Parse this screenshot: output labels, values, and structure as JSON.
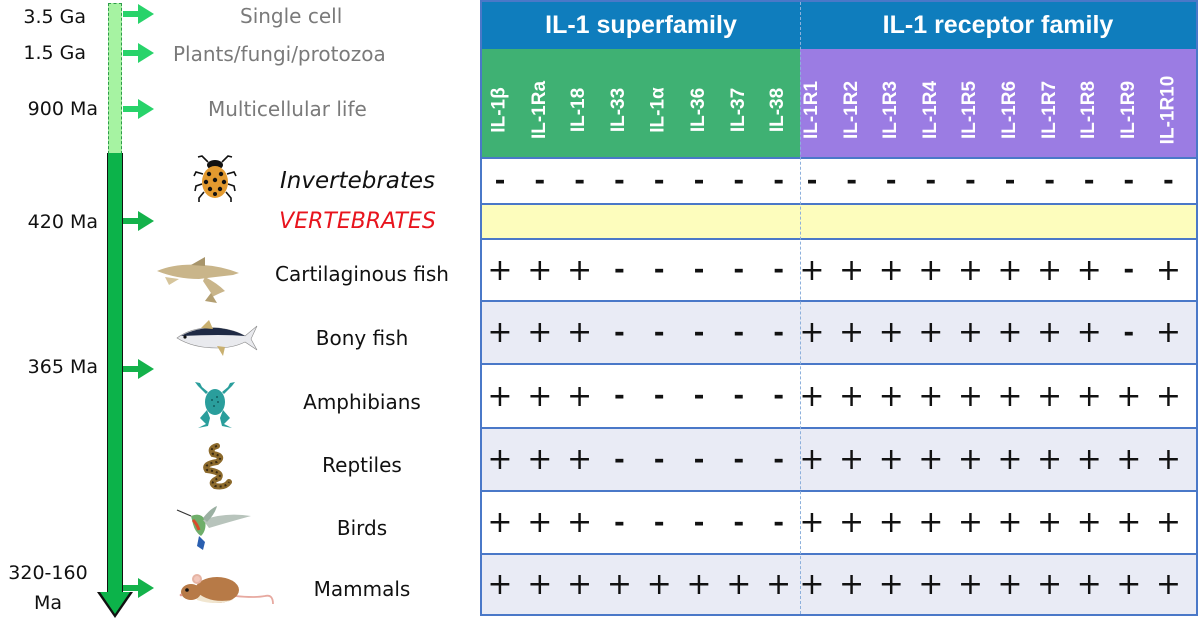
{
  "timeline": {
    "eras": [
      {
        "label": "3.5 Ga",
        "event": "Single cell"
      },
      {
        "label": "1.5 Ga",
        "event": "Plants/fungi/protozoa"
      },
      {
        "label": "900 Ma",
        "event": "Multicellular life"
      },
      {
        "label": "420 Ma"
      },
      {
        "label": "365 Ma"
      },
      {
        "label_line1": "320-160",
        "label_line2": "Ma"
      }
    ],
    "colors": {
      "early_bar": "#a6f3a2",
      "main_bar": "#0cb34a",
      "arrow": "#28d36a"
    }
  },
  "taxa": [
    {
      "name": "Invertebrates",
      "icon": "ladybug-icon"
    },
    {
      "name": "VERTEBRATES"
    },
    {
      "name": "Cartilaginous fish",
      "icon": "shark-icon"
    },
    {
      "name": "Bony fish",
      "icon": "tuna-icon"
    },
    {
      "name": "Amphibians",
      "icon": "frog-icon"
    },
    {
      "name": "Reptiles",
      "icon": "snake-icon"
    },
    {
      "name": "Birds",
      "icon": "hummingbird-icon"
    },
    {
      "name": "Mammals",
      "icon": "mouse-icon"
    }
  ],
  "table": {
    "families": [
      {
        "title": "IL-1 superfamily",
        "color": "#3fb173"
      },
      {
        "title": "IL-1 receptor family",
        "color": "#9b7ce3"
      }
    ],
    "header_color": "#0f7dbd",
    "columns": [
      "IL-1β",
      "IL-1Ra",
      "IL-18",
      "IL-33",
      "IL-1α",
      "IL-36",
      "IL-37",
      "IL-38",
      "IL-1R1",
      "IL-1R2",
      "IL-1R3",
      "IL-1R4",
      "IL-1R5",
      "IL-1R6",
      "IL-1R7",
      "IL-1R8",
      "IL-1R9",
      "IL-1R10"
    ],
    "rows": [
      {
        "taxon": "Invertebrates",
        "values": [
          "-",
          "-",
          "-",
          "-",
          "-",
          "-",
          "-",
          "-",
          "-",
          "-",
          "-",
          "-",
          "-",
          "-",
          "-",
          "-",
          "-",
          "-"
        ]
      },
      {
        "taxon": "VERTEBRATES",
        "values": []
      },
      {
        "taxon": "Cartilaginous fish",
        "values": [
          "+",
          "+",
          "+",
          "-",
          "-",
          "-",
          "-",
          "-",
          "+",
          "+",
          "+",
          "+",
          "+",
          "+",
          "+",
          "+",
          "-",
          "+"
        ]
      },
      {
        "taxon": "Bony fish",
        "values": [
          "+",
          "+",
          "+",
          "-",
          "-",
          "-",
          "-",
          "-",
          "+",
          "+",
          "+",
          "+",
          "+",
          "+",
          "+",
          "+",
          "-",
          "+"
        ]
      },
      {
        "taxon": "Amphibians",
        "values": [
          "+",
          "+",
          "+",
          "-",
          "-",
          "-",
          "-",
          "-",
          "+",
          "+",
          "+",
          "+",
          "+",
          "+",
          "+",
          "+",
          "+",
          "+"
        ]
      },
      {
        "taxon": "Reptiles",
        "values": [
          "+",
          "+",
          "+",
          "-",
          "-",
          "-",
          "-",
          "-",
          "+",
          "+",
          "+",
          "+",
          "+",
          "+",
          "+",
          "+",
          "+",
          "+"
        ]
      },
      {
        "taxon": "Birds",
        "values": [
          "+",
          "+",
          "+",
          "-",
          "-",
          "-",
          "-",
          "-",
          "+",
          "+",
          "+",
          "+",
          "+",
          "+",
          "+",
          "+",
          "+",
          "+"
        ]
      },
      {
        "taxon": "Mammals",
        "values": [
          "+",
          "+",
          "+",
          "+",
          "+",
          "+",
          "+",
          "+",
          "+",
          "+",
          "+",
          "+",
          "+",
          "+",
          "+",
          "+",
          "+",
          "+"
        ]
      }
    ]
  }
}
